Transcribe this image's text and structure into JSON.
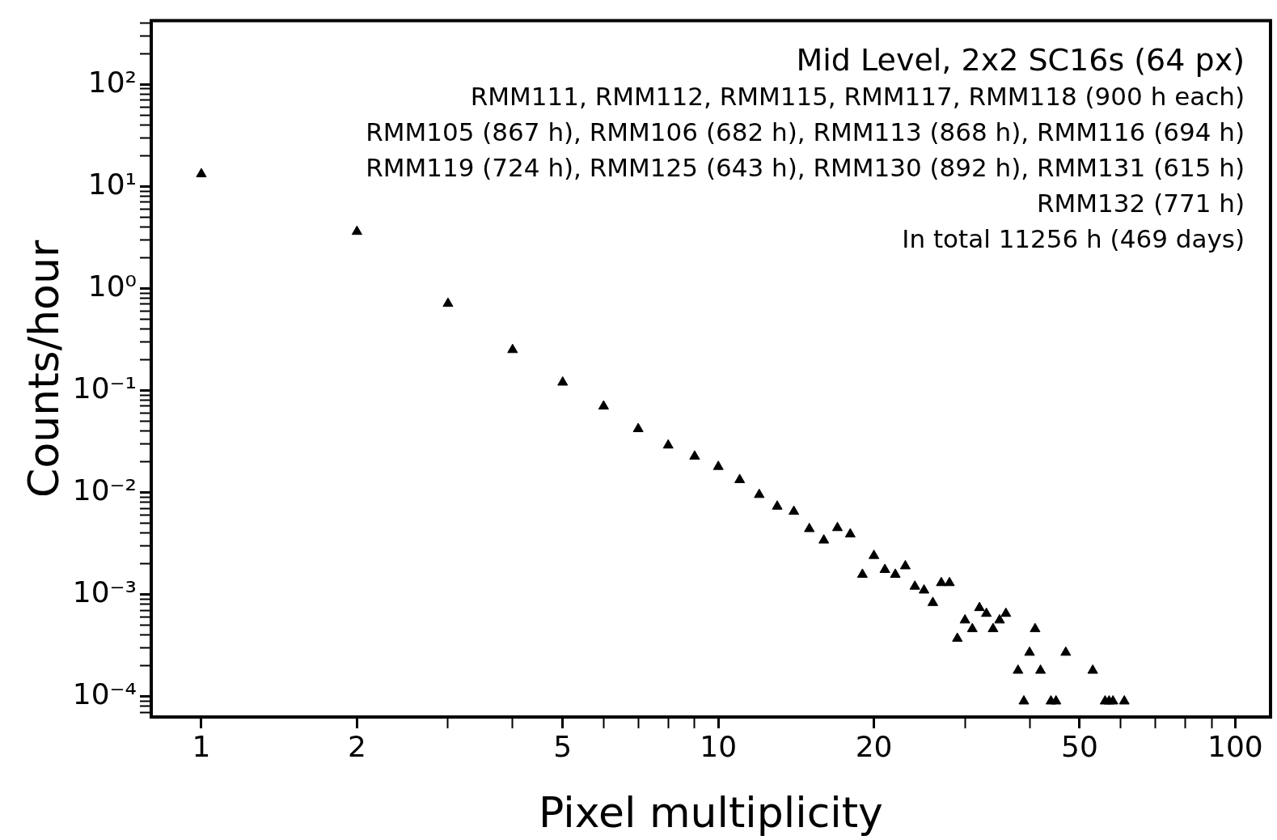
{
  "chart_data": {
    "type": "scatter",
    "xlabel": "Pixel multiplicity",
    "ylabel": "Counts/hour",
    "log": "xy",
    "grid": false,
    "legend": false,
    "marker": "triangle",
    "annotations": [
      "Mid Level, 2x2 SC16s (64 px)",
      "RMM111, RMM112, RMM115, RMM117, RMM118 (900 h each)",
      "RMM105 (867 h), RMM106 (682 h), RMM113 (868 h), RMM116 (694 h)",
      "RMM119 (724 h), RMM125 (643 h), RMM130 (892 h), RMM131 (615 h)",
      "RMM132 (771 h)",
      "In total 11256 h (469 days)"
    ],
    "xlim": [
      0.8,
      117
    ],
    "ylim": [
      6.3e-05,
      420
    ],
    "xticks": [
      1,
      2,
      {
        "value": 3,
        "label": null
      },
      {
        "value": 4,
        "label": null
      },
      5,
      {
        "value": 6,
        "label": null
      },
      {
        "value": 7,
        "label": null
      },
      {
        "value": 8,
        "label": null
      },
      {
        "value": 9,
        "label": null
      },
      10,
      20,
      {
        "value": 30,
        "label": null
      },
      {
        "value": 40,
        "label": null
      },
      50,
      {
        "value": 60,
        "label": null
      },
      {
        "value": 70,
        "label": null
      },
      {
        "value": 80,
        "label": null
      },
      {
        "value": 90,
        "label": null
      },
      100
    ],
    "yticks": [
      {
        "value": 7e-05,
        "label": null
      },
      {
        "value": 8e-05,
        "label": null
      },
      {
        "value": 9e-05,
        "label": null
      },
      {
        "value": 0.0001,
        "label": "10⁻⁴"
      },
      {
        "value": 0.0002,
        "label": null
      },
      {
        "value": 0.0003,
        "label": null
      },
      {
        "value": 0.0004,
        "label": null
      },
      {
        "value": 0.0005,
        "label": null
      },
      {
        "value": 0.0006,
        "label": null
      },
      {
        "value": 0.0007,
        "label": null
      },
      {
        "value": 0.0008,
        "label": null
      },
      {
        "value": 0.0009,
        "label": null
      },
      {
        "value": 0.001,
        "label": "10⁻³"
      },
      {
        "value": 0.002,
        "label": null
      },
      {
        "value": 0.003,
        "label": null
      },
      {
        "value": 0.004,
        "label": null
      },
      {
        "value": 0.005,
        "label": null
      },
      {
        "value": 0.006,
        "label": null
      },
      {
        "value": 0.007,
        "label": null
      },
      {
        "value": 0.008,
        "label": null
      },
      {
        "value": 0.009,
        "label": null
      },
      {
        "value": 0.01,
        "label": "10⁻²"
      },
      {
        "value": 0.02,
        "label": null
      },
      {
        "value": 0.03,
        "label": null
      },
      {
        "value": 0.04,
        "label": null
      },
      {
        "value": 0.05,
        "label": null
      },
      {
        "value": 0.06,
        "label": null
      },
      {
        "value": 0.07,
        "label": null
      },
      {
        "value": 0.08,
        "label": null
      },
      {
        "value": 0.09,
        "label": null
      },
      {
        "value": 0.1,
        "label": "10⁻¹"
      },
      {
        "value": 0.2,
        "label": null
      },
      {
        "value": 0.3,
        "label": null
      },
      {
        "value": 0.4,
        "label": null
      },
      {
        "value": 0.5,
        "label": null
      },
      {
        "value": 0.6,
        "label": null
      },
      {
        "value": 0.7,
        "label": null
      },
      {
        "value": 0.8,
        "label": null
      },
      {
        "value": 0.9,
        "label": null
      },
      {
        "value": 1,
        "label": "10⁰"
      },
      {
        "value": 2,
        "label": null
      },
      {
        "value": 3,
        "label": null
      },
      {
        "value": 4,
        "label": null
      },
      {
        "value": 5,
        "label": null
      },
      {
        "value": 6,
        "label": null
      },
      {
        "value": 7,
        "label": null
      },
      {
        "value": 8,
        "label": null
      },
      {
        "value": 9,
        "label": null
      },
      {
        "value": 10,
        "label": "10¹"
      },
      {
        "value": 20,
        "label": null
      },
      {
        "value": 30,
        "label": null
      },
      {
        "value": 40,
        "label": null
      },
      {
        "value": 50,
        "label": null
      },
      {
        "value": 60,
        "label": null
      },
      {
        "value": 70,
        "label": null
      },
      {
        "value": 80,
        "label": null
      },
      {
        "value": 90,
        "label": null
      },
      {
        "value": 100,
        "label": "10²"
      },
      {
        "value": 200,
        "label": null
      },
      {
        "value": 300,
        "label": null
      },
      {
        "value": 400,
        "label": null
      }
    ],
    "series": [
      {
        "color": "#000000",
        "x": [
          1,
          2,
          3,
          4,
          5,
          6,
          7,
          8,
          9,
          10,
          11,
          12,
          13,
          14,
          15,
          16,
          17,
          18,
          19,
          20,
          21,
          22,
          23,
          24,
          25,
          26,
          27,
          28,
          29,
          30,
          31,
          32,
          33,
          34,
          35,
          36,
          38,
          39,
          40,
          41,
          42,
          44,
          45,
          47,
          53,
          56,
          57,
          58,
          61
        ],
        "values": [
          13.2,
          3.6,
          0.71,
          0.25,
          0.12,
          0.07,
          0.042,
          0.029,
          0.0226,
          0.0179,
          0.0133,
          0.0095,
          0.0073,
          0.0065,
          0.0044,
          0.0034,
          0.0045,
          0.0039,
          0.00157,
          0.0024,
          0.00175,
          0.00157,
          0.0019,
          0.0012,
          0.0011,
          0.00083,
          0.0013,
          0.0013,
          0.00037,
          0.00056,
          0.00046,
          0.00074,
          0.00065,
          0.00046,
          0.00056,
          0.00065,
          0.00018,
          9e-05,
          0.00027,
          0.00046,
          0.00018,
          9e-05,
          9e-05,
          0.00027,
          0.00018,
          9e-05,
          9e-05,
          9e-05,
          9e-05
        ]
      }
    ]
  }
}
